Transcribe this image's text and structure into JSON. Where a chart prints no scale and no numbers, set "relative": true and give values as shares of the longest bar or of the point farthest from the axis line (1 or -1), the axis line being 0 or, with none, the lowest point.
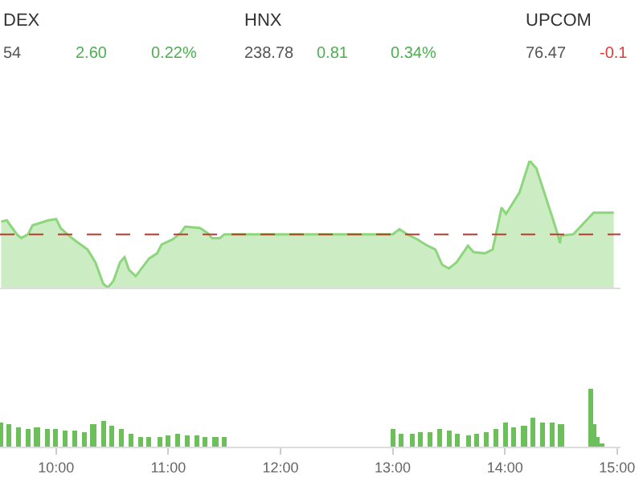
{
  "chart_data": [
    {
      "type": "other",
      "annotations": [
        "DEX",
        "54",
        "2.60",
        "0.22%",
        "HNX",
        "238.78",
        "0.81",
        "0.34%",
        "UPCOM",
        "76.47",
        "-0.1"
      ],
      "colors": [
        "#333333",
        "#555555",
        "#4caf50",
        "#4caf50",
        "#333333",
        "#555555",
        "#4caf50",
        "#4caf50",
        "#333333",
        "#555555",
        "#e53935"
      ]
    },
    {
      "type": "area",
      "relative": true,
      "tick_labels": false,
      "xlim": [
        9.5,
        15.03
      ],
      "x": [
        9.51,
        9.56,
        9.65,
        9.69,
        9.75,
        9.79,
        9.93,
        10.0,
        10.04,
        10.1,
        10.17,
        10.28,
        10.35,
        10.42,
        10.46,
        10.51,
        10.57,
        10.61,
        10.65,
        10.71,
        10.76,
        10.83,
        10.9,
        10.94,
        11.04,
        11.11,
        11.15,
        11.28,
        11.35,
        11.39,
        11.46,
        11.5,
        13.0,
        13.06,
        13.13,
        13.22,
        13.29,
        13.38,
        13.44,
        13.5,
        13.57,
        13.67,
        13.72,
        13.82,
        13.89,
        13.92,
        13.97,
        14.01,
        14.13,
        14.22,
        14.28,
        14.35,
        14.42,
        14.47,
        14.49,
        14.5,
        14.61,
        14.79,
        14.97
      ],
      "series": [
        {
          "color": "#8dd67d",
          "values": [
            0.52,
            0.53,
            0.42,
            0.39,
            0.42,
            0.49,
            0.53,
            0.54,
            0.47,
            0.42,
            0.37,
            0.3,
            0.2,
            0.03,
            0,
            0.05,
            0.2,
            0.24,
            0.14,
            0.09,
            0.15,
            0.23,
            0.27,
            0.34,
            0.38,
            0.43,
            0.48,
            0.47,
            0.43,
            0.39,
            0.39,
            0.42,
            0.42,
            0.46,
            0.42,
            0.38,
            0.34,
            0.3,
            0.18,
            0.15,
            0.2,
            0.33,
            0.28,
            0.27,
            0.3,
            0.42,
            0.63,
            0.58,
            0.75,
            1,
            0.94,
            0.75,
            0.56,
            0.42,
            0.35,
            0.41,
            0.42,
            0.59,
            0.59
          ]
        }
      ],
      "ref_lines": [
        {
          "axis": "y",
          "value": 0.42,
          "color": "#c0392b",
          "line_style": "dashed"
        }
      ]
    },
    {
      "type": "bar",
      "relative": true,
      "tick_labels": "x",
      "xlim": [
        9.5,
        15.03
      ],
      "xticks": [
        {
          "value": 10,
          "label": "10:00"
        },
        {
          "value": 11,
          "label": "11:00"
        },
        {
          "value": 12,
          "label": "12:00"
        },
        {
          "value": 13,
          "label": "13:00"
        },
        {
          "value": 14,
          "label": "14:00"
        },
        {
          "value": 15,
          "label": "15:00"
        }
      ],
      "x": [
        9.5,
        9.58,
        9.67,
        9.75,
        9.83,
        9.92,
        10.0,
        10.08,
        10.17,
        10.25,
        10.33,
        10.42,
        10.5,
        10.58,
        10.67,
        10.75,
        10.83,
        10.92,
        11.0,
        11.08,
        11.17,
        11.25,
        11.33,
        11.42,
        11.5,
        13.0,
        13.08,
        13.17,
        13.25,
        13.33,
        13.42,
        13.5,
        13.58,
        13.67,
        13.75,
        13.83,
        13.92,
        14.0,
        14.08,
        14.17,
        14.25,
        14.33,
        14.42,
        14.5,
        14.76,
        14.79,
        14.82,
        14.86
      ],
      "series": [
        {
          "color": "#6cbf5a",
          "values": [
            0.43,
            0.38,
            0.33,
            0.3,
            0.32,
            0.3,
            0.31,
            0.29,
            0.28,
            0.26,
            0.38,
            0.45,
            0.35,
            0.3,
            0.22,
            0.17,
            0.18,
            0.17,
            0.2,
            0.22,
            0.2,
            0.19,
            0.18,
            0.17,
            0.16,
            0.3,
            0.22,
            0.23,
            0.25,
            0.24,
            0.3,
            0.27,
            0.22,
            0.2,
            0.22,
            0.24,
            0.3,
            0.43,
            0.32,
            0.35,
            0.5,
            0.42,
            0.42,
            0.4,
            1,
            0.39,
            0.18,
            0.05
          ]
        }
      ]
    }
  ]
}
